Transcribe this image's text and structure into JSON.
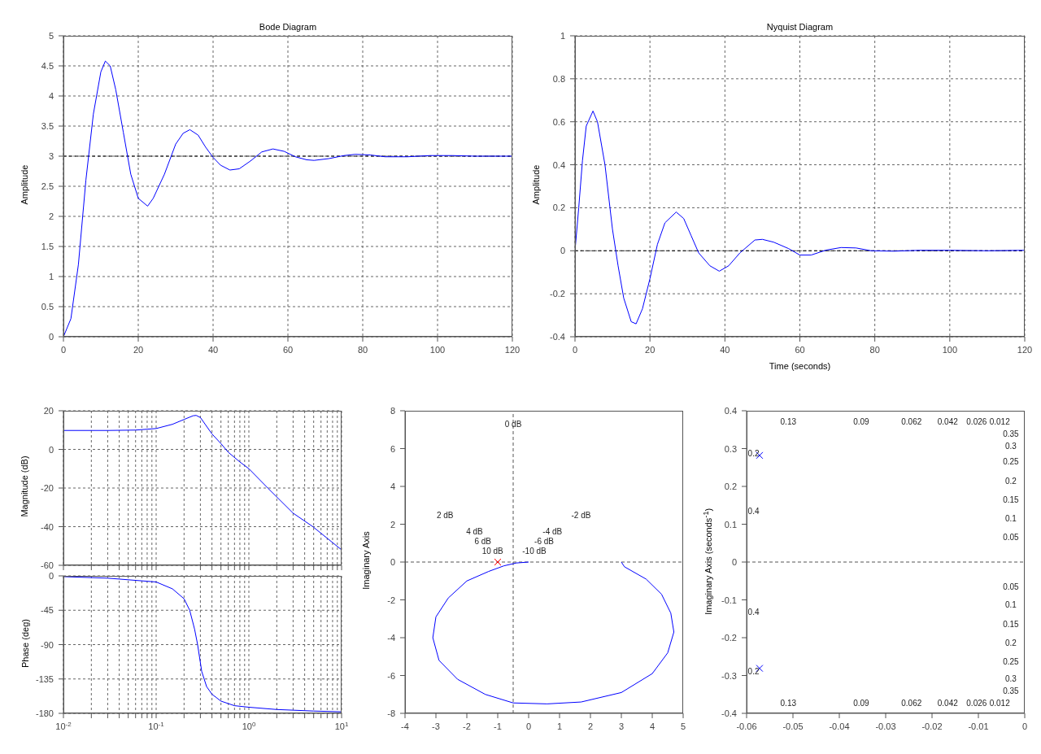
{
  "chart_data": [
    {
      "type": "line",
      "title": "Bode Diagram",
      "ylabel": "Amplitude",
      "xlim": [
        0,
        120
      ],
      "ylim": [
        0,
        5
      ],
      "xticks": [
        0,
        20,
        40,
        60,
        80,
        100,
        120
      ],
      "yticks": [
        0,
        0.5,
        1,
        1.5,
        2,
        2.5,
        3,
        3.5,
        4,
        4.5,
        5
      ],
      "grid": true,
      "ref_lines": [
        {
          "axis": "y",
          "value": 3,
          "line_style": "dashed",
          "color": "#000000"
        }
      ],
      "series": [
        {
          "color": "#0000ff",
          "x": [
            0,
            2,
            4,
            6,
            8,
            10,
            11.2,
            12.5,
            14,
            16,
            18,
            20,
            22.5,
            24,
            27,
            30,
            32,
            33.8,
            36,
            38,
            40,
            42,
            44.5,
            47,
            50,
            53,
            56,
            59,
            62,
            65,
            67,
            71,
            75,
            78,
            82,
            86,
            92,
            98,
            104,
            110,
            120
          ],
          "values": [
            0,
            0.3,
            1.2,
            2.6,
            3.7,
            4.4,
            4.58,
            4.5,
            4.1,
            3.4,
            2.7,
            2.3,
            2.17,
            2.3,
            2.7,
            3.2,
            3.38,
            3.44,
            3.35,
            3.15,
            2.98,
            2.85,
            2.77,
            2.79,
            2.92,
            3.07,
            3.12,
            3.08,
            2.99,
            2.94,
            2.93,
            2.96,
            3.01,
            3.03,
            3.02,
            2.99,
            2.99,
            3.01,
            3.01,
            3,
            3
          ]
        }
      ]
    },
    {
      "type": "line",
      "title": "Nyquist Diagram",
      "ylabel": "Amplitude",
      "xlabel": "Time (seconds)",
      "xlim": [
        0,
        120
      ],
      "ylim": [
        -0.4,
        1
      ],
      "xticks": [
        0,
        20,
        40,
        60,
        80,
        100,
        120
      ],
      "yticks": [
        -0.4,
        -0.2,
        0,
        0.2,
        0.4,
        0.6,
        0.8,
        1
      ],
      "grid": true,
      "ref_lines": [
        {
          "axis": "y",
          "value": 0,
          "line_style": "dashed",
          "color": "#000000"
        }
      ],
      "series": [
        {
          "color": "#0000ff",
          "x": [
            0,
            1,
            2,
            3,
            4.8,
            6,
            8,
            10,
            11.5,
            13,
            15,
            16.3,
            18,
            20,
            22,
            24,
            27,
            29,
            31,
            33,
            36,
            38.5,
            41,
            44,
            48,
            50,
            53,
            57,
            60,
            63,
            67,
            71,
            75,
            79,
            85,
            92,
            100,
            110,
            120
          ],
          "values": [
            0,
            0.2,
            0.42,
            0.58,
            0.65,
            0.6,
            0.4,
            0.1,
            -0.07,
            -0.22,
            -0.33,
            -0.34,
            -0.27,
            -0.13,
            0.03,
            0.13,
            0.18,
            0.15,
            0.07,
            -0.01,
            -0.07,
            -0.095,
            -0.07,
            -0.01,
            0.05,
            0.053,
            0.04,
            0.01,
            -0.02,
            -0.02,
            0.003,
            0.015,
            0.013,
            0,
            -0.002,
            0.002,
            0.002,
            0,
            0.002
          ]
        }
      ]
    },
    {
      "type": "line",
      "ylabel": "Magnitude (dB)",
      "log": "x",
      "xlim": [
        0.01,
        10
      ],
      "ylim": [
        -60,
        20
      ],
      "tick_labels": "y",
      "grid": true,
      "xticks": [
        {
          "value": 0.01,
          "label": null
        },
        {
          "value": 0.02,
          "label": null
        },
        {
          "value": 0.03,
          "label": null
        },
        {
          "value": 0.04,
          "label": null
        },
        {
          "value": 0.05,
          "label": null
        },
        {
          "value": 0.06,
          "label": null
        },
        {
          "value": 0.07,
          "label": null
        },
        {
          "value": 0.08,
          "label": null
        },
        {
          "value": 0.09,
          "label": null
        },
        {
          "value": 0.1,
          "label": null
        },
        {
          "value": 0.2,
          "label": null
        },
        {
          "value": 0.3,
          "label": null
        },
        {
          "value": 0.4,
          "label": null
        },
        {
          "value": 0.5,
          "label": null
        },
        {
          "value": 0.6,
          "label": null
        },
        {
          "value": 0.7,
          "label": null
        },
        {
          "value": 0.8,
          "label": null
        },
        {
          "value": 0.9,
          "label": null
        },
        {
          "value": 1,
          "label": null
        },
        {
          "value": 2,
          "label": null
        },
        {
          "value": 3,
          "label": null
        },
        {
          "value": 4,
          "label": null
        },
        {
          "value": 5,
          "label": null
        },
        {
          "value": 6,
          "label": null
        },
        {
          "value": 7,
          "label": null
        },
        {
          "value": 8,
          "label": null
        },
        {
          "value": 9,
          "label": null
        },
        {
          "value": 10,
          "label": null
        }
      ],
      "yticks": [
        -60,
        -40,
        -20,
        0,
        20
      ],
      "series": [
        {
          "color": "#0000ff",
          "x": [
            0.01,
            0.03,
            0.06,
            0.1,
            0.15,
            0.2,
            0.25,
            0.27,
            0.3,
            0.4,
            0.5,
            0.6,
            0.8,
            1,
            1.6,
            3,
            4.9,
            7,
            10
          ],
          "values": [
            9.8,
            9.8,
            10,
            10.8,
            13,
            15.5,
            17.4,
            17.6,
            16.5,
            8,
            3,
            -1.5,
            -6.5,
            -10,
            -20,
            -33,
            -40,
            -46,
            -52
          ]
        }
      ]
    },
    {
      "type": "line",
      "ylabel": "Phase (deg)",
      "log": "x",
      "xlim": [
        0.01,
        10
      ],
      "ylim": [
        -180,
        0
      ],
      "grid": true,
      "xticks": [
        {
          "value": 0.01,
          "label": "10$^{-2}$"
        },
        {
          "value": 0.02,
          "label": null
        },
        {
          "value": 0.03,
          "label": null
        },
        {
          "value": 0.04,
          "label": null
        },
        {
          "value": 0.05,
          "label": null
        },
        {
          "value": 0.06,
          "label": null
        },
        {
          "value": 0.07,
          "label": null
        },
        {
          "value": 0.08,
          "label": null
        },
        {
          "value": 0.09,
          "label": null
        },
        {
          "value": 0.1,
          "label": "10$^{-1}$"
        },
        {
          "value": 0.2,
          "label": null
        },
        {
          "value": 0.3,
          "label": null
        },
        {
          "value": 0.4,
          "label": null
        },
        {
          "value": 0.5,
          "label": null
        },
        {
          "value": 0.6,
          "label": null
        },
        {
          "value": 0.7,
          "label": null
        },
        {
          "value": 0.8,
          "label": null
        },
        {
          "value": 0.9,
          "label": null
        },
        {
          "value": 1,
          "label": "10$^{0}$"
        },
        {
          "value": 2,
          "label": null
        },
        {
          "value": 3,
          "label": null
        },
        {
          "value": 4,
          "label": null
        },
        {
          "value": 5,
          "label": null
        },
        {
          "value": 6,
          "label": null
        },
        {
          "value": 7,
          "label": null
        },
        {
          "value": 8,
          "label": null
        },
        {
          "value": 9,
          "label": null
        },
        {
          "value": 10,
          "label": "10$^{1}$"
        }
      ],
      "yticks": [
        -180,
        -135,
        -90,
        -45,
        0
      ],
      "series": [
        {
          "color": "#0000ff",
          "x": [
            0.01,
            0.03,
            0.1,
            0.15,
            0.2,
            0.23,
            0.26,
            0.28,
            0.31,
            0.35,
            0.4,
            0.5,
            0.7,
            1,
            2,
            5,
            10
          ],
          "values": [
            -1,
            -3,
            -8,
            -17,
            -30,
            -45,
            -70,
            -90,
            -125,
            -145,
            -155,
            -164,
            -170,
            -172,
            -175,
            -177,
            -178
          ]
        }
      ]
    },
    {
      "type": "line",
      "ylabel": "Imaginary Axis",
      "xlim": [
        -4,
        5
      ],
      "ylim": [
        -8,
        8
      ],
      "xticks": [
        -4,
        -3,
        -2,
        -1,
        0,
        1,
        2,
        3,
        4,
        5
      ],
      "yticks": [
        -8,
        -6,
        -4,
        -2,
        0,
        2,
        4,
        6,
        8
      ],
      "ref_lines": [
        {
          "axis": "x",
          "value": -0.5,
          "line_style": "dashed",
          "color": "#555555"
        },
        {
          "axis": "y",
          "value": 0,
          "line_style": "dashed",
          "color": "#555555"
        }
      ],
      "annotations": [
        "0 dB",
        "2 dB",
        "-2 dB",
        "4 dB",
        "-4 dB",
        "6 dB",
        "-6 dB",
        "10 dB",
        "-10 dB"
      ],
      "series": [
        {
          "color": "#0000ff",
          "x": [
            3,
            3.1,
            3.8,
            4.3,
            4.6,
            4.7,
            4.5,
            4.0,
            3.0,
            1.7,
            0.6,
            -0.5,
            -1.4,
            -2.3,
            -2.9,
            -3.1,
            -3.0,
            -2.6,
            -2.0,
            -1.3,
            -0.8,
            -0.4,
            0
          ],
          "values": [
            0,
            -0.25,
            -0.9,
            -1.7,
            -2.7,
            -3.7,
            -4.8,
            -5.9,
            -6.9,
            -7.4,
            -7.5,
            -7.45,
            -7.0,
            -6.2,
            -5.2,
            -4.0,
            -2.9,
            -1.9,
            -1.0,
            -0.5,
            -0.2,
            -0.05,
            0
          ]
        },
        {
          "type": "scatter",
          "marker": "cross",
          "color": "#ff0000",
          "x": [
            -1
          ],
          "values": [
            0
          ]
        }
      ]
    },
    {
      "type": "scatter",
      "marker": "cross",
      "ylabel": "Imaginary Axis (seconds$^{-1}$)",
      "xlim": [
        -0.06,
        0
      ],
      "ylim": [
        -0.4,
        0.4
      ],
      "xticks": [
        -0.06,
        -0.05,
        -0.04,
        -0.03,
        -0.02,
        -0.01,
        0
      ],
      "yticks": [
        -0.4,
        -0.3,
        -0.2,
        -0.1,
        0,
        0.1,
        0.2,
        0.3,
        0.4
      ],
      "ref_lines": [
        {
          "axis": "y",
          "value": 0,
          "line_style": "dashed",
          "color": "#555555"
        }
      ],
      "annotations": [
        "0.13",
        "0.09",
        "0.062",
        "0.042",
        "0.026",
        "0.012",
        "0.13",
        "0.09",
        "0.062",
        "0.042",
        "0.026",
        "0.012",
        "0.35",
        "0.3",
        "0.25",
        "0.2",
        "0.15",
        "0.1",
        "0.05",
        "0.05",
        "0.1",
        "0.15",
        "0.2",
        "0.25",
        "0.3",
        "0.35",
        "0.2",
        "0.4",
        "0.4",
        "0.2"
      ],
      "series": [
        {
          "color": "#0000ff",
          "x": [
            -0.0572,
            -0.0572
          ],
          "values": [
            0.282,
            -0.281
          ]
        }
      ]
    }
  ]
}
